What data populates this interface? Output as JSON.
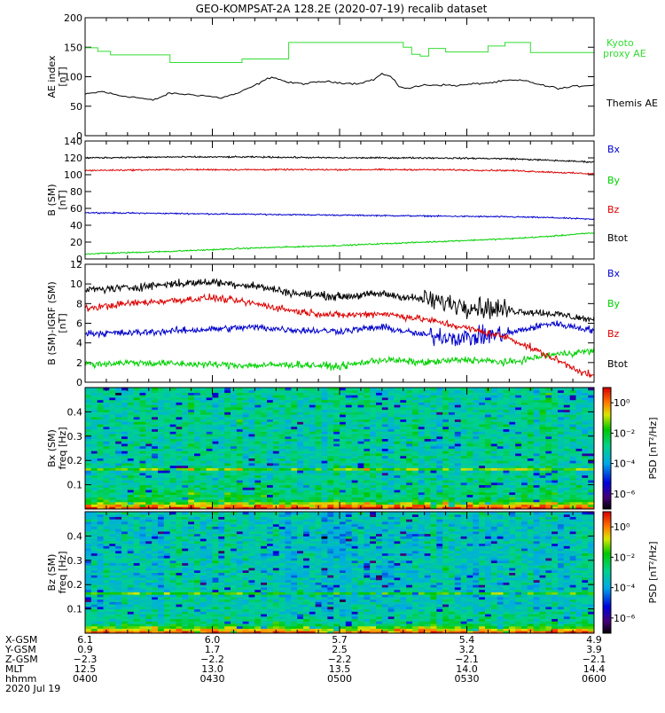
{
  "title": "GEO-KOMPSAT-2A 128.2E (2020-07-19) recalib dataset",
  "colors": {
    "black": "#000000",
    "green": "#00d000",
    "red": "#dd0000",
    "blue": "#0000cc",
    "kyoto": "#33dd33"
  },
  "chart_data": [
    {
      "type": "line",
      "panel": "ae-index",
      "ylabel": "AE index",
      "yunit": "[nT]",
      "ylim": [
        0,
        200
      ],
      "yticks": [
        0,
        50,
        100,
        150,
        200
      ],
      "ytick_labels": [
        "0",
        "50",
        "100",
        "150",
        "200"
      ],
      "xlim": [
        0,
        120
      ],
      "series": [
        {
          "name": "Kyoto proxy AE",
          "label_lines": [
            "Kyoto",
            "proxy AE"
          ],
          "color": "#33dd33",
          "style": "step",
          "x": [
            0,
            3,
            3,
            6,
            6,
            9,
            9,
            20,
            20,
            32,
            32,
            37,
            37,
            48,
            48,
            60,
            60,
            72,
            72,
            75,
            75,
            77,
            77,
            79,
            79,
            81,
            81,
            85,
            85,
            95,
            95,
            99,
            99,
            105,
            105,
            120
          ],
          "values": [
            149,
            149,
            143,
            143,
            137,
            137,
            137,
            137,
            124,
            124,
            124,
            124,
            130,
            130,
            158,
            158,
            158,
            158,
            158,
            158,
            150,
            150,
            138,
            138,
            135,
            135,
            148,
            148,
            142,
            142,
            152,
            152,
            158,
            158,
            141,
            141
          ]
        },
        {
          "name": "Themis AE",
          "label_lines": [
            "Themis AE"
          ],
          "color": "#000000",
          "style": "line",
          "x": [
            0,
            4,
            8,
            12,
            16,
            20,
            24,
            28,
            32,
            36,
            40,
            44,
            48,
            52,
            56,
            60,
            64,
            68,
            70,
            72,
            74,
            76,
            80,
            84,
            88,
            92,
            96,
            100,
            104,
            108,
            112,
            116,
            120
          ],
          "values": [
            70,
            75,
            68,
            65,
            60,
            72,
            70,
            68,
            64,
            72,
            85,
            100,
            90,
            88,
            92,
            90,
            88,
            95,
            105,
            100,
            84,
            80,
            86,
            86,
            85,
            88,
            90,
            94,
            93,
            85,
            80,
            84,
            86
          ]
        }
      ]
    },
    {
      "type": "line",
      "panel": "b-sm",
      "ylabel": "B (SM)",
      "yunit": "[nT]",
      "ylim": [
        0,
        140
      ],
      "yticks": [
        0,
        20,
        40,
        60,
        80,
        100,
        120,
        140
      ],
      "ytick_labels": [
        "0",
        "20",
        "40",
        "60",
        "80",
        "100",
        "120",
        "140"
      ],
      "xlim": [
        0,
        120
      ],
      "series": [
        {
          "name": "Bx",
          "color": "#0000cc",
          "x": [
            0,
            20,
            40,
            60,
            80,
            100,
            110,
            120
          ],
          "values": [
            55,
            54,
            53,
            52,
            51,
            50,
            49,
            47
          ]
        },
        {
          "name": "By",
          "color": "#00d000",
          "x": [
            0,
            20,
            40,
            60,
            80,
            100,
            110,
            120
          ],
          "values": [
            6,
            9,
            13,
            16,
            20,
            24,
            27,
            31
          ]
        },
        {
          "name": "Bz",
          "color": "#dd0000",
          "x": [
            0,
            20,
            40,
            60,
            80,
            100,
            110,
            120
          ],
          "values": [
            105,
            106,
            106,
            106,
            106,
            105,
            103,
            101
          ]
        },
        {
          "name": "Btot",
          "color": "#000000",
          "x": [
            0,
            20,
            40,
            60,
            80,
            100,
            110,
            120
          ],
          "values": [
            120,
            121,
            121,
            120,
            120,
            119,
            117,
            115
          ]
        }
      ]
    },
    {
      "type": "line",
      "panel": "b-igrf",
      "ylabel": "B (SM)-IGRF (SM)",
      "yunit": "[nT]",
      "ylim": [
        0,
        12
      ],
      "yticks": [
        0,
        2,
        4,
        6,
        8,
        10,
        12
      ],
      "ytick_labels": [
        "0",
        "2",
        "4",
        "6",
        "8",
        "10",
        "12"
      ],
      "xlim": [
        0,
        120
      ],
      "series": [
        {
          "name": "Bx",
          "color": "#0000cc",
          "x": [
            0,
            10,
            20,
            30,
            40,
            50,
            60,
            70,
            80,
            90,
            100,
            110,
            120
          ],
          "values": [
            5.0,
            5.0,
            5.2,
            5.4,
            5.6,
            5.3,
            5.2,
            5.6,
            4.8,
            4.5,
            5.0,
            6.0,
            5.3
          ]
        },
        {
          "name": "By",
          "color": "#00d000",
          "x": [
            0,
            10,
            20,
            30,
            40,
            50,
            60,
            70,
            80,
            90,
            100,
            110,
            120
          ],
          "values": [
            1.8,
            2.0,
            1.9,
            1.8,
            1.7,
            1.8,
            1.6,
            2.3,
            2.0,
            2.3,
            2.0,
            2.8,
            3.2
          ]
        },
        {
          "name": "Bz",
          "color": "#dd0000",
          "x": [
            0,
            10,
            20,
            30,
            40,
            50,
            60,
            70,
            80,
            90,
            100,
            110,
            120
          ],
          "values": [
            7.5,
            8.0,
            8.3,
            8.6,
            8.0,
            7.2,
            6.8,
            7.0,
            6.4,
            5.5,
            4.5,
            2.5,
            0.5
          ]
        },
        {
          "name": "Btot",
          "color": "#000000",
          "x": [
            0,
            10,
            20,
            30,
            40,
            50,
            60,
            70,
            80,
            90,
            100,
            110,
            120
          ],
          "values": [
            9.4,
            9.6,
            10.0,
            10.2,
            9.8,
            9.0,
            8.7,
            9.0,
            8.4,
            7.8,
            7.3,
            7.0,
            6.3
          ]
        }
      ]
    },
    {
      "type": "heatmap",
      "panel": "bx-spectrogram",
      "ylabel": "Bx (SM)",
      "yunit": "freq [Hz]",
      "ylim": [
        0,
        0.5
      ],
      "yticks": [
        0.1,
        0.2,
        0.3,
        0.4
      ],
      "ytick_labels": [
        "0.1",
        "0.2",
        "0.3",
        "0.4"
      ],
      "xlim": [
        0,
        120
      ],
      "colorbar": {
        "label": "PSD [nT²/Hz]",
        "tick_labels": [
          "10⁰",
          "10⁻²",
          "10⁻⁴",
          "10⁻⁶"
        ],
        "tick_log_values": [
          0,
          -2,
          -4,
          -6
        ],
        "range_log": [
          -7,
          1
        ]
      },
      "ridge_freq_hz": 0.167,
      "typical_log_psd": -3.0
    },
    {
      "type": "heatmap",
      "panel": "bz-spectrogram",
      "ylabel": "Bz (SM)",
      "yunit": "freq [Hz]",
      "ylim": [
        0,
        0.5
      ],
      "yticks": [
        0.1,
        0.2,
        0.3,
        0.4
      ],
      "ytick_labels": [
        "0.1",
        "0.2",
        "0.3",
        "0.4"
      ],
      "xlim": [
        0,
        120
      ],
      "colorbar": {
        "label": "PSD [nT²/Hz]",
        "tick_labels": [
          "10⁰",
          "10⁻²",
          "10⁻⁴",
          "10⁻⁶"
        ],
        "tick_log_values": [
          0,
          -2,
          -4,
          -6
        ],
        "range_log": [
          -7,
          1
        ]
      },
      "ridge_freq_hz": 0.167,
      "typical_log_psd": -3.3
    }
  ],
  "footer": {
    "row_labels": [
      "X-GSM",
      "Y-GSM",
      "Z-GSM",
      "MLT",
      "hhmm"
    ],
    "date_label": "2020 Jul 19",
    "columns": [
      {
        "x": 0,
        "values": [
          "6.1",
          "0.9",
          "−2.3",
          "12.5",
          "0400"
        ]
      },
      {
        "x": 30,
        "values": [
          "6.0",
          "1.7",
          "−2.2",
          "13.0",
          "0430"
        ]
      },
      {
        "x": 60,
        "values": [
          "5.7",
          "2.5",
          "−2.2",
          "13.5",
          "0500"
        ]
      },
      {
        "x": 90,
        "values": [
          "5.4",
          "3.2",
          "−2.1",
          "14.0",
          "0530"
        ]
      },
      {
        "x": 120,
        "values": [
          "4.9",
          "3.9",
          "−2.1",
          "14.4",
          "0600"
        ]
      }
    ]
  }
}
